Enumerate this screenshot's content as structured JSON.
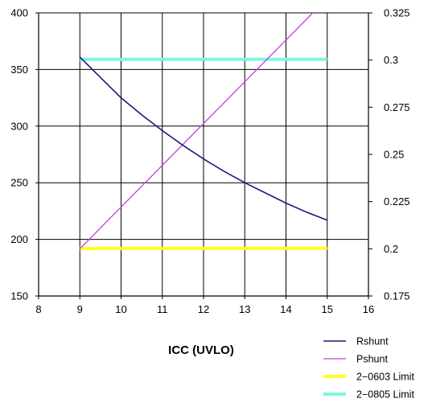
{
  "chart_data": {
    "type": "line",
    "xlabel": "ICC (UVLO)",
    "xlim": [
      8,
      16
    ],
    "x_ticks": [
      8,
      9,
      10,
      11,
      12,
      13,
      14,
      15,
      16
    ],
    "ylim_left": [
      150,
      400
    ],
    "y_ticks_left": [
      150,
      200,
      250,
      300,
      350,
      400
    ],
    "ylim_right": [
      0.175,
      0.325
    ],
    "y_ticks_right": [
      "0.175",
      "0.2",
      "0.225",
      "0.25",
      "0.275",
      "0.3",
      "0.325"
    ],
    "grid": "vertical lines at x ticks, horizontal lines at left-axis ticks",
    "legend_position": "bottom-right",
    "series": [
      {
        "name": "Rshunt",
        "axis": "left",
        "color": "#1a1a7a",
        "x": [
          9,
          9.5,
          10,
          10.5,
          11,
          11.5,
          12,
          12.5,
          13,
          13.5,
          14,
          14.5,
          15
        ],
        "y": [
          361,
          343,
          325,
          310,
          296,
          283,
          271,
          260,
          250,
          241,
          232,
          224,
          217
        ]
      },
      {
        "name": "Pshunt",
        "axis": "right",
        "color": "#c040e0",
        "x": [
          9,
          14.65
        ],
        "y": [
          0.2,
          0.325
        ]
      },
      {
        "name": "2−0603 Limit",
        "axis": "left",
        "color": "#ffff22",
        "x": [
          9,
          15
        ],
        "y": [
          192,
          192
        ]
      },
      {
        "name": "2−0805 Limit",
        "axis": "left",
        "color": "#7ff5e0",
        "x": [
          9,
          15
        ],
        "y": [
          359,
          359
        ]
      }
    ]
  }
}
